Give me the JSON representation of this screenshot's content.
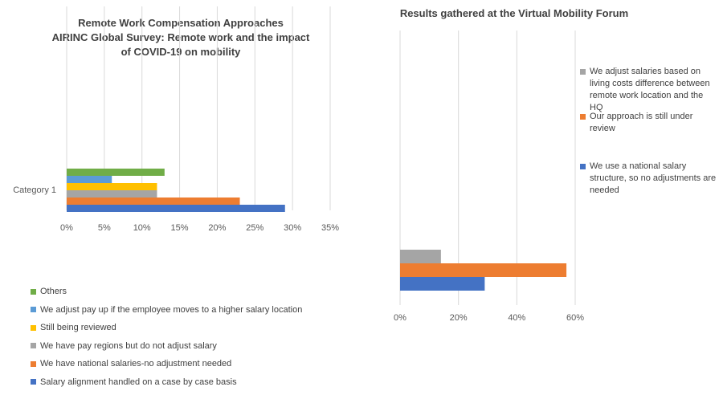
{
  "charts": {
    "left": {
      "title_lines": [
        "Remote Work Compensation Approaches",
        "AIRINC Global Survey: Remote work and the impact",
        "of COVID-19 on mobility"
      ],
      "chart_type": "bar",
      "category": "Category 1",
      "x_ticks": [
        "0%",
        "5%",
        "10%",
        "15%",
        "20%",
        "25%",
        "30%",
        "35%"
      ],
      "xlim": [
        0,
        35
      ],
      "series": [
        {
          "name": "Salary alignment handled on a case by case basis",
          "value": 29,
          "color": "#4472C4"
        },
        {
          "name": "We have national salaries-no adjustment needed",
          "value": 23,
          "color": "#ED7D31"
        },
        {
          "name": "We have pay regions but do not adjust salary",
          "value": 12,
          "color": "#A5A5A5"
        },
        {
          "name": "Still being reviewed",
          "value": 12,
          "color": "#FFC000"
        },
        {
          "name": "We adjust pay up if the employee moves to a higher salary location",
          "value": 6,
          "color": "#5B9BD5"
        },
        {
          "name": "Others",
          "value": 13,
          "color": "#70AD47"
        }
      ]
    },
    "right": {
      "title": "Results gathered at the Virtual Mobility Forum",
      "chart_type": "bar",
      "x_ticks": [
        "0%",
        "20%",
        "40%",
        "60%"
      ],
      "xlim": [
        0,
        60
      ],
      "series": [
        {
          "name": "We use a national salary structure, so no adjustments are needed",
          "value": 29,
          "color": "#4472C4"
        },
        {
          "name": "Our approach is still under review",
          "value": 57,
          "color": "#ED7D31"
        },
        {
          "name": "We adjust salaries based on living costs difference between remote work location and the HQ",
          "value": 14,
          "color": "#A5A5A5"
        }
      ]
    }
  },
  "chart_data": [
    {
      "type": "bar",
      "orientation": "horizontal",
      "title": "Remote Work Compensation Approaches AIRINC Global Survey: Remote work and the impact of COVID-19 on mobility",
      "categories": [
        "Category 1"
      ],
      "series": [
        {
          "name": "Salary alignment handled on a case by case basis",
          "values": [
            29
          ]
        },
        {
          "name": "We have national salaries-no adjustment needed",
          "values": [
            23
          ]
        },
        {
          "name": "We have pay regions but do not adjust salary",
          "values": [
            12
          ]
        },
        {
          "name": "Still being reviewed",
          "values": [
            12
          ]
        },
        {
          "name": "We adjust pay up if the employee moves to a higher salary location",
          "values": [
            6
          ]
        },
        {
          "name": "Others",
          "values": [
            13
          ]
        }
      ],
      "xlim": [
        0,
        35
      ],
      "x_unit": "%",
      "grid": true,
      "legend": "bottom"
    },
    {
      "type": "bar",
      "orientation": "horizontal",
      "title": "Results gathered at the Virtual Mobility Forum",
      "categories": [
        ""
      ],
      "series": [
        {
          "name": "We use a national salary structure, so no adjustments are needed",
          "values": [
            29
          ]
        },
        {
          "name": "Our approach is still under review",
          "values": [
            57
          ]
        },
        {
          "name": "We adjust salaries based on living costs difference between remote work location and the HQ",
          "values": [
            14
          ]
        }
      ],
      "xlim": [
        0,
        60
      ],
      "x_unit": "%",
      "grid": true,
      "legend": "right"
    }
  ]
}
